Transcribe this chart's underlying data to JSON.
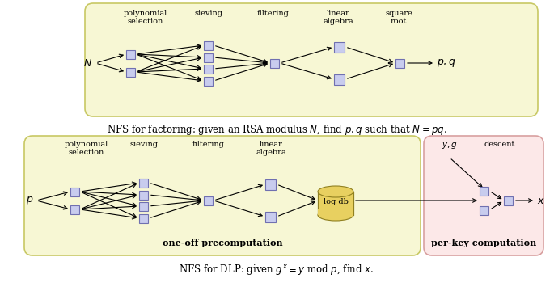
{
  "fig_width": 6.85,
  "fig_height": 3.76,
  "dpi": 100,
  "bg_color": "#ffffff",
  "box1_color": "#f7f7d4",
  "box1_edge": "#c8c864",
  "box2_yellow_color": "#f7f7d4",
  "box2_yellow_edge": "#c8c864",
  "box2_pink_color": "#fce8e8",
  "box2_pink_edge": "#d8a0a0",
  "node_face": "#c8ccee",
  "node_edge": "#7070b0",
  "cylinder_face": "#e8d060",
  "cylinder_edge": "#908020",
  "arrow_color": "#000000",
  "text_color": "#000000",
  "caption1": "NFS for factoring: given an RSA modulus $N$, find $p,q$ such that $N=pq$.",
  "caption2": "NFS for DLP: given $g^x \\equiv y$ mod $p$, find $x$.",
  "label_poly": "polynomial\nselection",
  "label_sieve": "sieving",
  "label_filter": "filtering",
  "label_linalg": "linear\nalgebra",
  "label_sqroot": "square\nroot",
  "label_logdb": "log db",
  "label_descent": "descent",
  "label_oneoff": "one-off precomputation",
  "label_perkey": "per-key computation"
}
